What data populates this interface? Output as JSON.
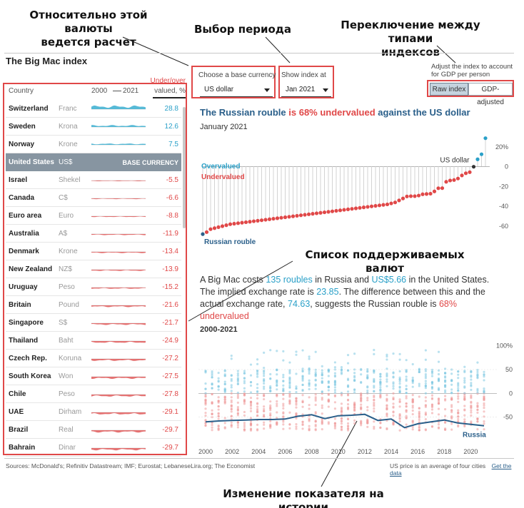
{
  "annotations": {
    "base_currency_line1": "Относительно этой валюты",
    "base_currency_line2": "ведется расчет",
    "period": "Выбор периода",
    "index_type_line1": "Переключение между типами",
    "index_type_line2": "индексов",
    "currency_list": "Список поддерживаемых валют",
    "history": "Изменение показателя на истории"
  },
  "app": {
    "title": "The Big Mac index"
  },
  "table": {
    "col_country": "Country",
    "col_year_start": "2000",
    "col_year_end": "2021",
    "col_value_line1": "Under/over",
    "col_value_line2": "valued, %",
    "rows": [
      {
        "country": "Switzerland",
        "currency": "Franc",
        "value": "28.8"
      },
      {
        "country": "Sweden",
        "currency": "Krona",
        "value": "12.6"
      },
      {
        "country": "Norway",
        "currency": "Krone",
        "value": "7.5"
      },
      {
        "country": "United States",
        "currency": "US$",
        "value": "BASE CURRENCY"
      },
      {
        "country": "Israel",
        "currency": "Shekel",
        "value": "-5.5"
      },
      {
        "country": "Canada",
        "currency": "C$",
        "value": "-6.6"
      },
      {
        "country": "Euro area",
        "currency": "Euro",
        "value": "-8.8"
      },
      {
        "country": "Australia",
        "currency": "A$",
        "value": "-11.9"
      },
      {
        "country": "Denmark",
        "currency": "Krone",
        "value": "-13.4"
      },
      {
        "country": "New Zealand",
        "currency": "NZ$",
        "value": "-13.9"
      },
      {
        "country": "Uruguay",
        "currency": "Peso",
        "value": "-15.2"
      },
      {
        "country": "Britain",
        "currency": "Pound",
        "value": "-21.6"
      },
      {
        "country": "Singapore",
        "currency": "S$",
        "value": "-21.7"
      },
      {
        "country": "Thailand",
        "currency": "Baht",
        "value": "-24.9"
      },
      {
        "country": "Czech Rep.",
        "currency": "Koruna",
        "value": "-27.2"
      },
      {
        "country": "South Korea",
        "currency": "Won",
        "value": "-27.5"
      },
      {
        "country": "Chile",
        "currency": "Peso",
        "value": "-27.8"
      },
      {
        "country": "UAE",
        "currency": "Dirham",
        "value": "-29.1"
      },
      {
        "country": "Brazil",
        "currency": "Real",
        "value": "-29.7"
      },
      {
        "country": "Bahrain",
        "currency": "Dinar",
        "value": "-29.7"
      }
    ]
  },
  "controls": {
    "base_label": "Choose a base currency",
    "base_value": "US dollar",
    "period_label": "Show index at",
    "period_value": "Jan 2021",
    "adjust_line1": "Adjust the index to account",
    "adjust_line2": "for GDP per person",
    "raw_label": "Raw index",
    "gdp_label": "GDP-adjusted"
  },
  "headline": {
    "part1": "The Russian rouble",
    "part2": "is 68% undervalued",
    "part3": "against the US dollar",
    "date": "January 2021"
  },
  "explain": {
    "t1": "A Big Mac costs",
    "v1": "135 roubles",
    "t2": "in Russia and",
    "v2": "US$5.66",
    "t3": "in the United States. The implied exchange rate is",
    "v3": "23.85",
    "t4": ". The difference between this and the actual exchange rate,",
    "v4": "74.63",
    "t5": ", suggests the Russian rouble is",
    "v5": "68% undervalued"
  },
  "history": {
    "title": "2000-2021"
  },
  "footer": {
    "sources": "Sources: McDonald's; Refinitiv Datastream; IMF; Eurostat; LebaneseLira.org; The Economist",
    "note": "US price is an average of four cities",
    "link": "Get the data"
  },
  "colors": {
    "red": "#e04848",
    "blue": "#2aa0c8",
    "dark_blue": "#2a5f8a",
    "annotation_box": "#e04848"
  },
  "chart_data": [
    {
      "type": "lollipop",
      "title": "The Russian rouble is 68% undervalued against the US dollar",
      "subtitle": "January 2021",
      "labels": {
        "over": "Overvalued",
        "under": "Undervalued",
        "us": "US dollar",
        "russia": "Russian rouble"
      },
      "y_ticks": [
        "20%",
        "0",
        "-20",
        "-40",
        "-60"
      ],
      "ylim": [
        -78,
        30
      ],
      "values": [
        -68,
        -66,
        -63,
        -62,
        -61,
        -60,
        -59,
        -58,
        -57.5,
        -57,
        -56.5,
        -56,
        -55.5,
        -55,
        -54.5,
        -54,
        -53.5,
        -53,
        -52.5,
        -52,
        -51.5,
        -51,
        -50.5,
        -50,
        -49.5,
        -49,
        -48.5,
        -48,
        -47.5,
        -47,
        -46.5,
        -46,
        -45.5,
        -45,
        -44.5,
        -44,
        -43.5,
        -43,
        -42.5,
        -42,
        -41.5,
        -41,
        -40.5,
        -40,
        -39.5,
        -39,
        -38.5,
        -38,
        -37,
        -36,
        -34,
        -32,
        -30,
        -29.7,
        -29.7,
        -29.1,
        -27.8,
        -27.5,
        -27.2,
        -24.9,
        -21.7,
        -21.6,
        -15.2,
        -13.9,
        -13.4,
        -11.9,
        -8.8,
        -6.6,
        -5.5,
        0,
        7.5,
        12.6,
        28.8
      ]
    },
    {
      "type": "scatter-line",
      "title": "2000-2021",
      "x_ticks": [
        "2000",
        "2002",
        "2004",
        "2006",
        "2008",
        "2010",
        "2012",
        "2014",
        "2016",
        "2018",
        "2020"
      ],
      "y_ticks": [
        "100%",
        "50",
        "0",
        "-50"
      ],
      "ylim": [
        -100,
        110
      ],
      "series_label": "Russia",
      "russia_years": [
        2000,
        2001,
        2002,
        2003,
        2004,
        2005,
        2006,
        2007,
        2008,
        2009,
        2010,
        2011,
        2012,
        2013,
        2014,
        2015,
        2016,
        2017,
        2018,
        2019,
        2020,
        2021
      ],
      "russia_values": [
        -60,
        -58,
        -57,
        -56,
        -55,
        -55,
        -54,
        -48,
        -45,
        -53,
        -47,
        -46,
        -44,
        -57,
        -54,
        -72,
        -64,
        -60,
        -56,
        -62,
        -65,
        -68
      ]
    }
  ]
}
